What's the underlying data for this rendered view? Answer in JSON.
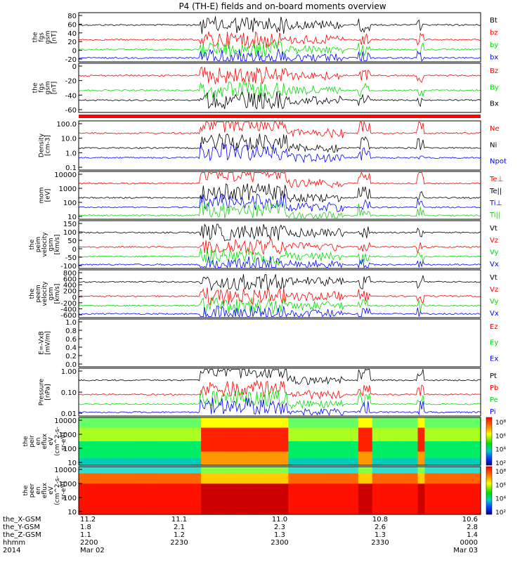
{
  "title": "P4 (TH-E) fields and on-board moments overview",
  "colors": {
    "black": "#000000",
    "red": "#ff0000",
    "green": "#00dd00",
    "blue": "#0000ff",
    "lime": "#22cc22"
  },
  "chart_data": [
    {
      "type": "line",
      "ylabel": [
        "the",
        "fgs",
        "gsm",
        "[nT]"
      ],
      "yticks": [
        "80",
        "60",
        "40",
        "20",
        "0",
        "-20"
      ],
      "ylim": [
        -20,
        85
      ],
      "series": [
        {
          "name": "Bt",
          "color": "#000000"
        },
        {
          "name": "bz",
          "color": "#ff0000"
        },
        {
          "name": "by",
          "color": "#00dd00"
        },
        {
          "name": "bx",
          "color": "#0000ff"
        }
      ]
    },
    {
      "type": "line",
      "ylabel": [
        "the",
        "fgs",
        "gsm",
        "[nT]"
      ],
      "yticks": [
        "0",
        "-20",
        "-40",
        "-60"
      ],
      "ylim": [
        -75,
        10
      ],
      "series": [
        {
          "name": "Bz",
          "color": "#ff0000"
        },
        {
          "name": "By",
          "color": "#00dd00"
        },
        {
          "name": "Bx",
          "color": "#000000"
        }
      ]
    },
    {
      "type": "line",
      "ylabel": [
        "Density",
        "[cm-3]"
      ],
      "yticks": [
        "100.0",
        "10.0",
        "1.0",
        "0.1"
      ],
      "ylim": [
        0.1,
        100
      ],
      "log": true,
      "series": [
        {
          "name": "Ne",
          "color": "#ff0000"
        },
        {
          "name": "Ni",
          "color": "#000000"
        },
        {
          "name": "Npot",
          "color": "#0000ff"
        }
      ]
    },
    {
      "type": "line",
      "ylabel": [
        "mom",
        "[eV]"
      ],
      "yticks": [
        "10000",
        "1000",
        "100",
        "10"
      ],
      "ylim": [
        10,
        10000
      ],
      "log": true,
      "series": [
        {
          "name": "Te⊥",
          "color": "#ff0000"
        },
        {
          "name": "Te||",
          "color": "#000000"
        },
        {
          "name": "Ti⊥",
          "color": "#0000ff"
        },
        {
          "name": "Ti||",
          "color": "#22cc22"
        }
      ]
    },
    {
      "type": "line",
      "ylabel": [
        "the",
        "peim",
        "velocity",
        "gsm",
        "[km/s]"
      ],
      "yticks": [
        "150",
        "100",
        "50",
        "0",
        "-50",
        "-100"
      ],
      "ylim": [
        -120,
        160
      ],
      "series": [
        {
          "name": "Vt",
          "color": "#000000"
        },
        {
          "name": "Vz",
          "color": "#ff0000"
        },
        {
          "name": "Vy",
          "color": "#00dd00"
        },
        {
          "name": "Vx",
          "color": "#0000ff"
        }
      ]
    },
    {
      "type": "line",
      "ylabel": [
        "the",
        "peem",
        "velocity",
        "gsm",
        "[km/s]"
      ],
      "yticks": [
        "800",
        "600",
        "400",
        "200",
        "0",
        "-200",
        "-400",
        "-600"
      ],
      "ylim": [
        -650,
        850
      ],
      "series": [
        {
          "name": "Vt",
          "color": "#000000"
        },
        {
          "name": "Vz",
          "color": "#ff0000"
        },
        {
          "name": "Vy",
          "color": "#00dd00"
        },
        {
          "name": "Vx",
          "color": "#0000ff"
        }
      ]
    },
    {
      "type": "line",
      "ylabel": [
        "E=-VxB",
        "[mV/m]"
      ],
      "yticks": [
        "1.0",
        "0.8",
        "0.6",
        "0.4",
        "0.2",
        "0.0"
      ],
      "ylim": [
        0,
        1
      ],
      "series": [
        {
          "name": "Ez",
          "color": "#ff0000"
        },
        {
          "name": "Ey",
          "color": "#00dd00"
        },
        {
          "name": "Ex",
          "color": "#0000ff"
        }
      ]
    },
    {
      "type": "line",
      "ylabel": [
        "Pressure",
        "[nPa]"
      ],
      "yticks": [
        "1.00",
        "0.10",
        "0.01"
      ],
      "ylim": [
        0.01,
        2
      ],
      "log": true,
      "series": [
        {
          "name": "Pt",
          "color": "#000000"
        },
        {
          "name": "Pb",
          "color": "#ff0000"
        },
        {
          "name": "Pe",
          "color": "#00dd00"
        },
        {
          "name": "Pi",
          "color": "#0000ff"
        }
      ]
    },
    {
      "type": "heatmap",
      "ylabel": [
        "the",
        "peir",
        "en",
        "eflux",
        "eV",
        "(cm^2-s-",
        "sr-eV)"
      ],
      "yticks": [
        "10000",
        "1000",
        "100",
        "10"
      ],
      "colorbar": [
        "10⁸",
        "10⁶",
        "10⁴",
        "10²"
      ]
    },
    {
      "type": "heatmap",
      "ylabel": [
        "the",
        "peer",
        "en",
        "eflux",
        "eV",
        "(cm^2-s-",
        "sr-eV)"
      ],
      "yticks": [
        "10000",
        "1000",
        "100",
        "10"
      ],
      "colorbar": [
        "10⁸",
        "10⁶",
        "10⁴",
        "10²"
      ]
    }
  ],
  "xaxis": {
    "rows": [
      {
        "label": "the_X-GSM",
        "values": [
          "11.2",
          "11.1",
          "11.0",
          "10.8",
          "10.6"
        ]
      },
      {
        "label": "the_Y-GSM",
        "values": [
          "1.8",
          "2.1",
          "2.3",
          "2.6",
          "2.8"
        ]
      },
      {
        "label": "the_Z-GSM",
        "values": [
          "1.1",
          "1.2",
          "1.3",
          "1.3",
          "1.4"
        ]
      },
      {
        "label": "hhmm",
        "values": [
          "2200",
          "2230",
          "2300",
          "2330",
          "0000"
        ]
      },
      {
        "label": "2014",
        "values": [
          "Mar 02",
          "",
          "",
          "",
          "Mar 03"
        ]
      }
    ]
  }
}
